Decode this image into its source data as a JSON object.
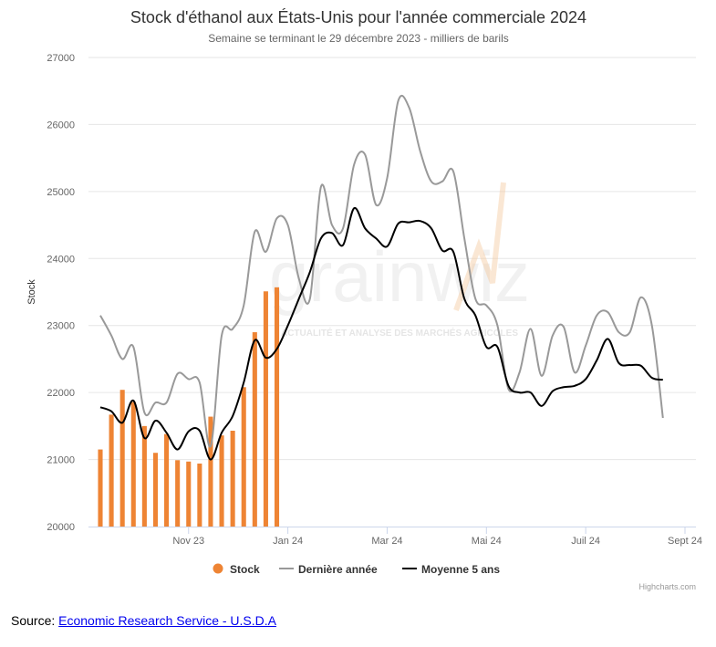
{
  "source": {
    "label": "Source:",
    "link_text": "Economic Research Service - U.S.D.A"
  },
  "credits": "Highcharts.com",
  "watermark": {
    "text": "grainwiz",
    "subtitle": "ACTUALITÉ ET ANALYSE DES MARCHÉS AGRICOLES"
  },
  "chart_data": {
    "type": "bar+line",
    "title": "Stock d'éthanol aux États-Unis pour l'année commerciale 2024",
    "subtitle": "Semaine se terminant le 29 décembre 2023 - milliers de barils",
    "ylabel": "Stock",
    "ylim": [
      20000,
      27000
    ],
    "yticks": [
      20000,
      21000,
      22000,
      23000,
      24000,
      25000,
      26000,
      27000
    ],
    "xrange_weeks": [
      0,
      53
    ],
    "xticks": [
      {
        "label": "Nov 23",
        "week": 8
      },
      {
        "label": "Jan 24",
        "week": 17
      },
      {
        "label": "Mar 24",
        "week": 26
      },
      {
        "label": "Mai 24",
        "week": 35
      },
      {
        "label": "Juil 24",
        "week": 44
      },
      {
        "label": "Sept 24",
        "week": 53
      }
    ],
    "legend": {
      "position": "bottom-center"
    },
    "colors": {
      "stock": "#ee8434",
      "last_year": "#999999",
      "avg5": "#000000",
      "grid": "#e6e6e6"
    },
    "series": [
      {
        "name": "Stock",
        "type": "column",
        "start_week": 0,
        "values": [
          21150,
          21670,
          22040,
          21860,
          21500,
          21100,
          21380,
          20990,
          20970,
          20940,
          21640,
          21360,
          21430,
          22080,
          22900,
          23510,
          23570
        ]
      },
      {
        "name": "Dernière année",
        "type": "spline",
        "start_week": 0,
        "values": [
          23150,
          22850,
          22500,
          22680,
          21700,
          21850,
          21850,
          22280,
          22200,
          22150,
          21200,
          22850,
          22950,
          23300,
          24400,
          24100,
          24600,
          24500,
          23700,
          23400,
          25070,
          24500,
          24450,
          25400,
          25550,
          24800,
          25200,
          26350,
          26250,
          25600,
          25150,
          25150,
          25300,
          24300,
          23400,
          23300,
          23000,
          22050,
          22300,
          22950,
          22250,
          22850,
          22980,
          22300,
          22700,
          23150,
          23200,
          22900,
          22900,
          23420,
          23000,
          21620
        ]
      },
      {
        "name": "Moyenne 5 ans",
        "type": "spline",
        "start_week": 0,
        "values": [
          21780,
          21720,
          21550,
          21880,
          21320,
          21580,
          21400,
          21150,
          21420,
          21430,
          21000,
          21400,
          21650,
          22150,
          22780,
          22520,
          22650,
          23000,
          23400,
          23800,
          24300,
          24380,
          24200,
          24750,
          24450,
          24300,
          24180,
          24520,
          24540,
          24560,
          24450,
          24120,
          24100,
          23400,
          23150,
          22680,
          22680,
          22100,
          22000,
          22000,
          21800,
          22020,
          22080,
          22100,
          22200,
          22480,
          22800,
          22440,
          22410,
          22400,
          22220,
          22190
        ]
      }
    ]
  }
}
